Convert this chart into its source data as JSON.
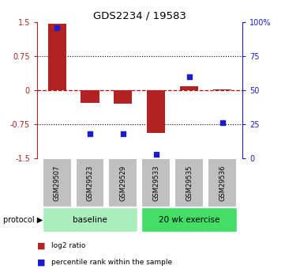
{
  "title": "GDS2234 / 19583",
  "samples": [
    "GSM29507",
    "GSM29523",
    "GSM29529",
    "GSM29533",
    "GSM29535",
    "GSM29536"
  ],
  "log2_ratio": [
    1.45,
    -0.28,
    -0.3,
    -0.95,
    0.08,
    0.02
  ],
  "percentile_rank": [
    96,
    18,
    18,
    3,
    60,
    26
  ],
  "bar_color": "#b22222",
  "dot_color": "#1c1ccc",
  "ylim_left": [
    -1.5,
    1.5
  ],
  "yticks_left": [
    -1.5,
    -0.75,
    0,
    0.75,
    1.5
  ],
  "yticks_right": [
    0,
    25,
    50,
    75,
    100
  ],
  "groups": [
    {
      "label": "baseline",
      "indices": [
        0,
        1,
        2
      ],
      "color": "#aaeebb"
    },
    {
      "label": "20 wk exercise",
      "indices": [
        3,
        4,
        5
      ],
      "color": "#44dd66"
    }
  ],
  "protocol_label": "protocol ▶",
  "legend_items": [
    {
      "label": "log2 ratio",
      "color": "#b22222"
    },
    {
      "label": "percentile rank within the sample",
      "color": "#1c1ccc"
    }
  ],
  "dashed_line_color": "#cc0000",
  "dotted_line_color": "#000000",
  "background_color": "#ffffff",
  "sample_box_color": "#c0c0c0"
}
